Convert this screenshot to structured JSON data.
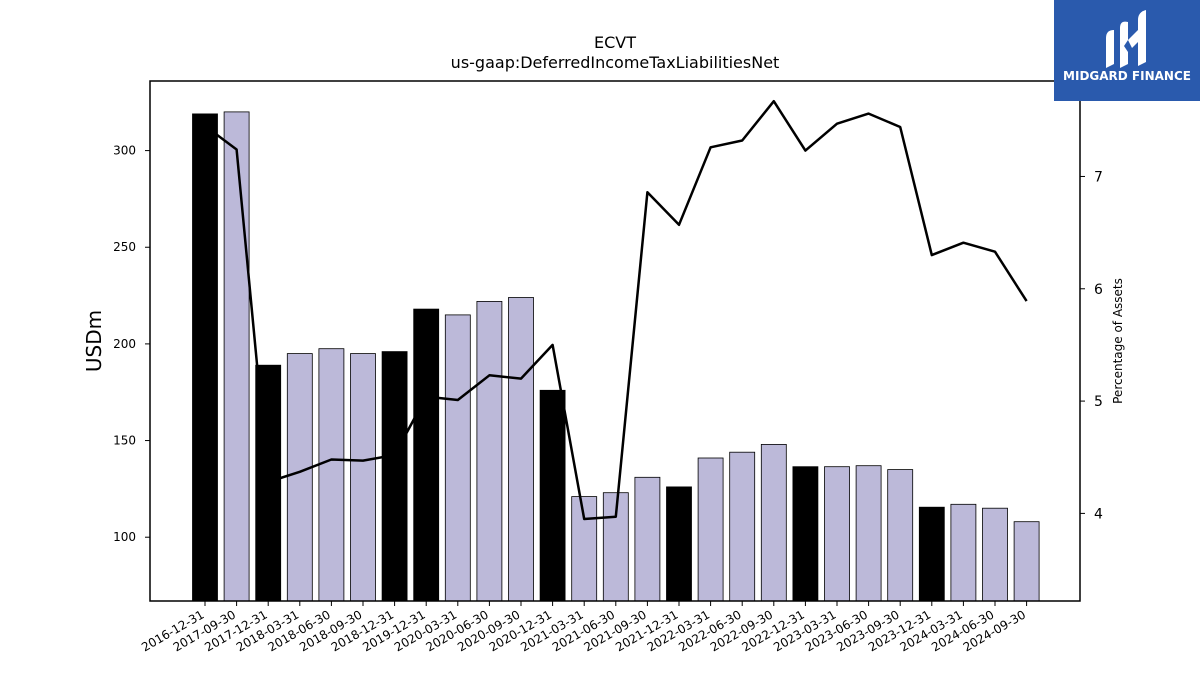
{
  "chart_data": {
    "type": "bar",
    "title": "ECVT",
    "subtitle": "us-gaap:DeferredIncomeTaxLiabilitiesNet",
    "ylabel": "USDm",
    "y2label": "Percentage of Assets",
    "ylim": [
      67,
      336
    ],
    "y2lim": [
      3.22,
      7.85
    ],
    "yticks": [
      100,
      150,
      200,
      250,
      300
    ],
    "y2ticks": [
      4,
      5,
      6,
      7
    ],
    "categories": [
      "2016-12-31",
      "2017-09-30",
      "2017-12-31",
      "2018-03-31",
      "2018-06-30",
      "2018-09-30",
      "2018-12-31",
      "2019-12-31",
      "2020-03-31",
      "2020-06-30",
      "2020-09-30",
      "2020-12-31",
      "2021-03-31",
      "2021-06-30",
      "2021-09-30",
      "2021-12-31",
      "2022-03-31",
      "2022-06-30",
      "2022-09-30",
      "2022-12-31",
      "2023-03-31",
      "2023-06-30",
      "2023-09-30",
      "2023-12-31",
      "2024-03-31",
      "2024-06-30",
      "2024-09-30"
    ],
    "series": [
      {
        "type": "bar",
        "values": [
          319,
          320,
          189,
          195,
          197.5,
          195,
          196,
          218,
          215,
          222,
          224,
          176,
          121,
          123,
          131,
          126,
          141,
          144,
          148,
          136.5,
          136.5,
          137,
          135,
          115.5,
          117,
          115,
          108
        ],
        "annual_flags": [
          true,
          false,
          true,
          false,
          false,
          false,
          true,
          true,
          false,
          false,
          false,
          true,
          false,
          false,
          false,
          true,
          false,
          false,
          false,
          true,
          false,
          false,
          false,
          true,
          false,
          false,
          false
        ]
      },
      {
        "type": "line",
        "axis": "right",
        "values": [
          7.45,
          7.24,
          4.28,
          4.37,
          4.48,
          4.47,
          4.52,
          5.04,
          5.01,
          5.23,
          5.2,
          5.5,
          3.95,
          3.97,
          6.86,
          6.57,
          7.26,
          7.32,
          7.67,
          7.23,
          7.47,
          7.56,
          7.44,
          6.3,
          6.41,
          6.33,
          5.89
        ]
      }
    ],
    "colors": {
      "annual_bar": "#000000",
      "quarter_bar": "#bcb9d9",
      "line": "#000000"
    },
    "grid": false
  },
  "logo": {
    "text": "MIDGARD FINANCE",
    "bg": "#2a5aad"
  }
}
